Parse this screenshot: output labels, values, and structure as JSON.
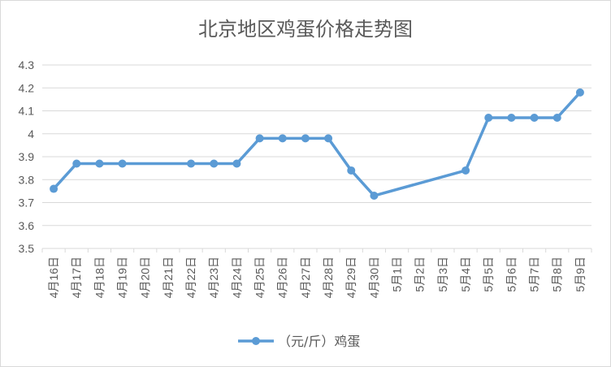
{
  "chart_data": {
    "type": "line",
    "title": "北京地区鸡蛋价格走势图",
    "categories": [
      "4月16日",
      "4月17日",
      "4月18日",
      "4月19日",
      "4月20日",
      "4月21日",
      "4月22日",
      "4月23日",
      "4月24日",
      "4月25日",
      "4月26日",
      "4月27日",
      "4月28日",
      "4月29日",
      "4月30日",
      "5月1日",
      "5月2日",
      "5月3日",
      "5月4日",
      "5月5日",
      "5月6日",
      "5月7日",
      "5月8日",
      "5月9日"
    ],
    "series": [
      {
        "name": "（元/斤）鸡蛋",
        "color": "#5b9bd5",
        "values": [
          3.76,
          3.87,
          3.87,
          3.87,
          null,
          null,
          3.87,
          3.87,
          3.87,
          3.98,
          3.98,
          3.98,
          3.98,
          3.84,
          3.73,
          null,
          null,
          null,
          3.84,
          4.07,
          4.07,
          4.07,
          4.07,
          4.18
        ]
      }
    ],
    "ylim": [
      3.5,
      4.3
    ],
    "yticks": [
      "3.5",
      "3.6",
      "3.7",
      "3.8",
      "3.9",
      "4",
      "4.1",
      "4.2",
      "4.3"
    ],
    "grid": true,
    "legend_position": "bottom"
  }
}
